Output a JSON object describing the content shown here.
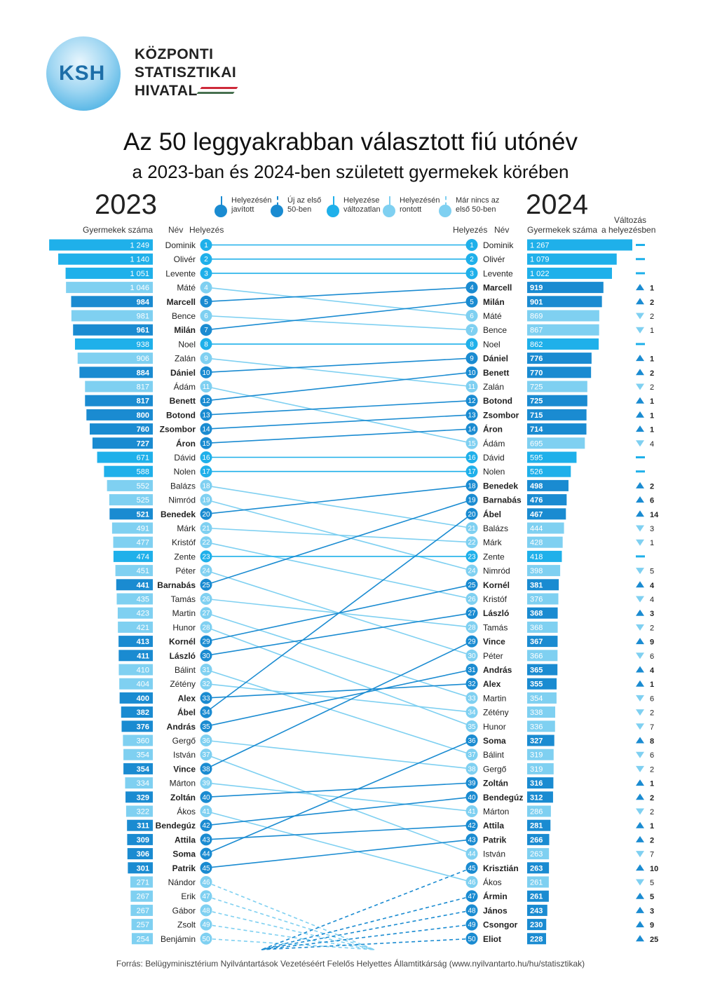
{
  "logo": {
    "abbr": "KSH",
    "line1": "KÖZPONTI",
    "line2": "STATISZTIKAI",
    "line3": "HIVATAL"
  },
  "title": "Az 50 leggyakrabban választott fiú utónév",
  "subtitle": "a 2023-ban és 2024-ben született gyermekek körében",
  "year_left": "2023",
  "year_right": "2024",
  "headers": {
    "count_left": "Gyermekek száma",
    "name": "Név",
    "rank": "Helyezés",
    "count_right": "Gyermekek száma",
    "change_line1": "Változás",
    "change_line2": "a helyezésben"
  },
  "legend": [
    {
      "l1": "Helyezésén",
      "l2": "javított",
      "color": "#1a8bd1",
      "dashed": false
    },
    {
      "l1": "Új az első",
      "l2": "50-ben",
      "color": "#1a8bd1",
      "dashed": true
    },
    {
      "l1": "Helyezése",
      "l2": "változatlan",
      "color": "#1fb0ea",
      "dashed": false
    },
    {
      "l1": "Helyezésén",
      "l2": "rontott",
      "color": "#7fd0f1",
      "dashed": false
    },
    {
      "l1": "Már nincs az",
      "l2": "első 50-ben",
      "color": "#7fd0f1",
      "dashed": true
    }
  ],
  "colors": {
    "improved": "#1a8bd1",
    "same": "#1fb0ea",
    "worse": "#7fd0f1",
    "new_text": "#ffffff"
  },
  "source": "Forrás: Belügyminisztérium Nyilvántartások Vezetéséért Felelős Helyettes Államtitkárság (www.nyilvantarto.hu/hu/statisztikak)",
  "chart_data": {
    "type": "bar",
    "left_2023": [
      {
        "rank": 1,
        "name": "Dominik",
        "count": 1249,
        "label": "1 249",
        "status": "same",
        "new_rank": 1
      },
      {
        "rank": 2,
        "name": "Olivér",
        "count": 1140,
        "label": "1 140",
        "status": "same",
        "new_rank": 2
      },
      {
        "rank": 3,
        "name": "Levente",
        "count": 1051,
        "label": "1 051",
        "status": "same",
        "new_rank": 3
      },
      {
        "rank": 4,
        "name": "Máté",
        "count": 1046,
        "label": "1 046",
        "status": "worse",
        "new_rank": 6
      },
      {
        "rank": 5,
        "name": "Marcell",
        "count": 984,
        "label": "984",
        "status": "improved",
        "new_rank": 4
      },
      {
        "rank": 6,
        "name": "Bence",
        "count": 981,
        "label": "981",
        "status": "worse",
        "new_rank": 7
      },
      {
        "rank": 7,
        "name": "Milán",
        "count": 961,
        "label": "961",
        "status": "improved",
        "new_rank": 5
      },
      {
        "rank": 8,
        "name": "Noel",
        "count": 938,
        "label": "938",
        "status": "same",
        "new_rank": 8
      },
      {
        "rank": 9,
        "name": "Zalán",
        "count": 906,
        "label": "906",
        "status": "worse",
        "new_rank": 11
      },
      {
        "rank": 10,
        "name": "Dániel",
        "count": 884,
        "label": "884",
        "status": "improved",
        "new_rank": 9
      },
      {
        "rank": 11,
        "name": "Ádám",
        "count": 817,
        "label": "817",
        "status": "worse",
        "new_rank": 15
      },
      {
        "rank": 12,
        "name": "Benett",
        "count": 817,
        "label": "817",
        "status": "improved",
        "new_rank": 10
      },
      {
        "rank": 13,
        "name": "Botond",
        "count": 800,
        "label": "800",
        "status": "improved",
        "new_rank": 12
      },
      {
        "rank": 14,
        "name": "Zsombor",
        "count": 760,
        "label": "760",
        "status": "improved",
        "new_rank": 13
      },
      {
        "rank": 15,
        "name": "Áron",
        "count": 727,
        "label": "727",
        "status": "improved",
        "new_rank": 14
      },
      {
        "rank": 16,
        "name": "Dávid",
        "count": 671,
        "label": "671",
        "status": "same",
        "new_rank": 16
      },
      {
        "rank": 17,
        "name": "Nolen",
        "count": 588,
        "label": "588",
        "status": "same",
        "new_rank": 17
      },
      {
        "rank": 18,
        "name": "Balázs",
        "count": 552,
        "label": "552",
        "status": "worse",
        "new_rank": 21
      },
      {
        "rank": 19,
        "name": "Nimród",
        "count": 525,
        "label": "525",
        "status": "worse",
        "new_rank": 24
      },
      {
        "rank": 20,
        "name": "Benedek",
        "count": 521,
        "label": "521",
        "status": "improved",
        "new_rank": 18
      },
      {
        "rank": 21,
        "name": "Márk",
        "count": 491,
        "label": "491",
        "status": "worse",
        "new_rank": 22
      },
      {
        "rank": 22,
        "name": "Kristóf",
        "count": 477,
        "label": "477",
        "status": "worse",
        "new_rank": 26
      },
      {
        "rank": 23,
        "name": "Zente",
        "count": 474,
        "label": "474",
        "status": "same",
        "new_rank": 23
      },
      {
        "rank": 24,
        "name": "Péter",
        "count": 451,
        "label": "451",
        "status": "worse",
        "new_rank": 30
      },
      {
        "rank": 25,
        "name": "Barnabás",
        "count": 441,
        "label": "441",
        "status": "improved",
        "new_rank": 19
      },
      {
        "rank": 26,
        "name": "Tamás",
        "count": 435,
        "label": "435",
        "status": "worse",
        "new_rank": 28
      },
      {
        "rank": 27,
        "name": "Martin",
        "count": 423,
        "label": "423",
        "status": "worse",
        "new_rank": 33
      },
      {
        "rank": 28,
        "name": "Hunor",
        "count": 421,
        "label": "421",
        "status": "worse",
        "new_rank": 35
      },
      {
        "rank": 29,
        "name": "Kornél",
        "count": 413,
        "label": "413",
        "status": "improved",
        "new_rank": 25
      },
      {
        "rank": 30,
        "name": "László",
        "count": 411,
        "label": "411",
        "status": "improved",
        "new_rank": 27
      },
      {
        "rank": 31,
        "name": "Bálint",
        "count": 410,
        "label": "410",
        "status": "worse",
        "new_rank": 37
      },
      {
        "rank": 32,
        "name": "Zétény",
        "count": 404,
        "label": "404",
        "status": "worse",
        "new_rank": 34
      },
      {
        "rank": 33,
        "name": "Alex",
        "count": 400,
        "label": "400",
        "status": "improved",
        "new_rank": 32
      },
      {
        "rank": 34,
        "name": "Ábel",
        "count": 382,
        "label": "382",
        "status": "improved",
        "new_rank": 20
      },
      {
        "rank": 35,
        "name": "András",
        "count": 376,
        "label": "376",
        "status": "improved",
        "new_rank": 31
      },
      {
        "rank": 36,
        "name": "Gergő",
        "count": 360,
        "label": "360",
        "status": "worse",
        "new_rank": 38
      },
      {
        "rank": 37,
        "name": "István",
        "count": 354,
        "label": "354",
        "status": "worse",
        "new_rank": 44
      },
      {
        "rank": 38,
        "name": "Vince",
        "count": 354,
        "label": "354",
        "status": "improved",
        "new_rank": 29
      },
      {
        "rank": 39,
        "name": "Márton",
        "count": 334,
        "label": "334",
        "status": "worse",
        "new_rank": 41
      },
      {
        "rank": 40,
        "name": "Zoltán",
        "count": 329,
        "label": "329",
        "status": "improved",
        "new_rank": 39
      },
      {
        "rank": 41,
        "name": "Ákos",
        "count": 322,
        "label": "322",
        "status": "worse",
        "new_rank": 46
      },
      {
        "rank": 42,
        "name": "Bendegúz",
        "count": 311,
        "label": "311",
        "status": "improved",
        "new_rank": 40
      },
      {
        "rank": 43,
        "name": "Attila",
        "count": 309,
        "label": "309",
        "status": "improved",
        "new_rank": 42
      },
      {
        "rank": 44,
        "name": "Soma",
        "count": 306,
        "label": "306",
        "status": "improved",
        "new_rank": 36
      },
      {
        "rank": 45,
        "name": "Patrik",
        "count": 301,
        "label": "301",
        "status": "improved",
        "new_rank": 43
      },
      {
        "rank": 46,
        "name": "Nándor",
        "count": 271,
        "label": "271",
        "status": "dropped",
        "new_rank": null
      },
      {
        "rank": 47,
        "name": "Erik",
        "count": 267,
        "label": "267",
        "status": "dropped",
        "new_rank": null
      },
      {
        "rank": 48,
        "name": "Gábor",
        "count": 267,
        "label": "267",
        "status": "dropped",
        "new_rank": null
      },
      {
        "rank": 49,
        "name": "Zsolt",
        "count": 257,
        "label": "257",
        "status": "dropped",
        "new_rank": null
      },
      {
        "rank": 50,
        "name": "Benjámin",
        "count": 254,
        "label": "254",
        "status": "dropped",
        "new_rank": null
      }
    ],
    "right_2024": [
      {
        "rank": 1,
        "name": "Dominik",
        "count": 1267,
        "label": "1 267",
        "status": "same",
        "change": "",
        "dir": "same"
      },
      {
        "rank": 2,
        "name": "Olivér",
        "count": 1079,
        "label": "1 079",
        "status": "same",
        "change": "",
        "dir": "same"
      },
      {
        "rank": 3,
        "name": "Levente",
        "count": 1022,
        "label": "1 022",
        "status": "same",
        "change": "",
        "dir": "same"
      },
      {
        "rank": 4,
        "name": "Marcell",
        "count": 919,
        "label": "919",
        "status": "improved",
        "change": "1",
        "dir": "up"
      },
      {
        "rank": 5,
        "name": "Milán",
        "count": 901,
        "label": "901",
        "status": "improved",
        "change": "2",
        "dir": "up"
      },
      {
        "rank": 6,
        "name": "Máté",
        "count": 869,
        "label": "869",
        "status": "worse",
        "change": "2",
        "dir": "down"
      },
      {
        "rank": 7,
        "name": "Bence",
        "count": 867,
        "label": "867",
        "status": "worse",
        "change": "1",
        "dir": "down"
      },
      {
        "rank": 8,
        "name": "Noel",
        "count": 862,
        "label": "862",
        "status": "same",
        "change": "",
        "dir": "same"
      },
      {
        "rank": 9,
        "name": "Dániel",
        "count": 776,
        "label": "776",
        "status": "improved",
        "change": "1",
        "dir": "up"
      },
      {
        "rank": 10,
        "name": "Benett",
        "count": 770,
        "label": "770",
        "status": "improved",
        "change": "2",
        "dir": "up"
      },
      {
        "rank": 11,
        "name": "Zalán",
        "count": 725,
        "label": "725",
        "status": "worse",
        "change": "2",
        "dir": "down"
      },
      {
        "rank": 12,
        "name": "Botond",
        "count": 725,
        "label": "725",
        "status": "improved",
        "change": "1",
        "dir": "up"
      },
      {
        "rank": 13,
        "name": "Zsombor",
        "count": 715,
        "label": "715",
        "status": "improved",
        "change": "1",
        "dir": "up"
      },
      {
        "rank": 14,
        "name": "Áron",
        "count": 714,
        "label": "714",
        "status": "improved",
        "change": "1",
        "dir": "up"
      },
      {
        "rank": 15,
        "name": "Ádám",
        "count": 695,
        "label": "695",
        "status": "worse",
        "change": "4",
        "dir": "down"
      },
      {
        "rank": 16,
        "name": "Dávid",
        "count": 595,
        "label": "595",
        "status": "same",
        "change": "",
        "dir": "same"
      },
      {
        "rank": 17,
        "name": "Nolen",
        "count": 526,
        "label": "526",
        "status": "same",
        "change": "",
        "dir": "same"
      },
      {
        "rank": 18,
        "name": "Benedek",
        "count": 498,
        "label": "498",
        "status": "improved",
        "change": "2",
        "dir": "up"
      },
      {
        "rank": 19,
        "name": "Barnabás",
        "count": 476,
        "label": "476",
        "status": "improved",
        "change": "6",
        "dir": "up"
      },
      {
        "rank": 20,
        "name": "Ábel",
        "count": 467,
        "label": "467",
        "status": "improved",
        "change": "14",
        "dir": "up"
      },
      {
        "rank": 21,
        "name": "Balázs",
        "count": 444,
        "label": "444",
        "status": "worse",
        "change": "3",
        "dir": "down"
      },
      {
        "rank": 22,
        "name": "Márk",
        "count": 428,
        "label": "428",
        "status": "worse",
        "change": "1",
        "dir": "down"
      },
      {
        "rank": 23,
        "name": "Zente",
        "count": 418,
        "label": "418",
        "status": "same",
        "change": "",
        "dir": "same"
      },
      {
        "rank": 24,
        "name": "Nimród",
        "count": 398,
        "label": "398",
        "status": "worse",
        "change": "5",
        "dir": "down"
      },
      {
        "rank": 25,
        "name": "Kornél",
        "count": 381,
        "label": "381",
        "status": "improved",
        "change": "4",
        "dir": "up"
      },
      {
        "rank": 26,
        "name": "Kristóf",
        "count": 376,
        "label": "376",
        "status": "worse",
        "change": "4",
        "dir": "down"
      },
      {
        "rank": 27,
        "name": "László",
        "count": 368,
        "label": "368",
        "status": "improved",
        "change": "3",
        "dir": "up"
      },
      {
        "rank": 28,
        "name": "Tamás",
        "count": 368,
        "label": "368",
        "status": "worse",
        "change": "2",
        "dir": "down"
      },
      {
        "rank": 29,
        "name": "Vince",
        "count": 367,
        "label": "367",
        "status": "improved",
        "change": "9",
        "dir": "up"
      },
      {
        "rank": 30,
        "name": "Péter",
        "count": 366,
        "label": "366",
        "status": "worse",
        "change": "6",
        "dir": "down"
      },
      {
        "rank": 31,
        "name": "András",
        "count": 365,
        "label": "365",
        "status": "improved",
        "change": "4",
        "dir": "up"
      },
      {
        "rank": 32,
        "name": "Alex",
        "count": 355,
        "label": "355",
        "status": "improved",
        "change": "1",
        "dir": "up"
      },
      {
        "rank": 33,
        "name": "Martin",
        "count": 354,
        "label": "354",
        "status": "worse",
        "change": "6",
        "dir": "down"
      },
      {
        "rank": 34,
        "name": "Zétény",
        "count": 338,
        "label": "338",
        "status": "worse",
        "change": "2",
        "dir": "down"
      },
      {
        "rank": 35,
        "name": "Hunor",
        "count": 336,
        "label": "336",
        "status": "worse",
        "change": "7",
        "dir": "down"
      },
      {
        "rank": 36,
        "name": "Soma",
        "count": 327,
        "label": "327",
        "status": "improved",
        "change": "8",
        "dir": "up"
      },
      {
        "rank": 37,
        "name": "Bálint",
        "count": 319,
        "label": "319",
        "status": "worse",
        "change": "6",
        "dir": "down"
      },
      {
        "rank": 38,
        "name": "Gergő",
        "count": 319,
        "label": "319",
        "status": "worse",
        "change": "2",
        "dir": "down"
      },
      {
        "rank": 39,
        "name": "Zoltán",
        "count": 316,
        "label": "316",
        "status": "improved",
        "change": "1",
        "dir": "up"
      },
      {
        "rank": 40,
        "name": "Bendegúz",
        "count": 312,
        "label": "312",
        "status": "improved",
        "change": "2",
        "dir": "up"
      },
      {
        "rank": 41,
        "name": "Márton",
        "count": 286,
        "label": "286",
        "status": "worse",
        "change": "2",
        "dir": "down"
      },
      {
        "rank": 42,
        "name": "Attila",
        "count": 281,
        "label": "281",
        "status": "improved",
        "change": "1",
        "dir": "up"
      },
      {
        "rank": 43,
        "name": "Patrik",
        "count": 266,
        "label": "266",
        "status": "improved",
        "change": "2",
        "dir": "up"
      },
      {
        "rank": 44,
        "name": "István",
        "count": 263,
        "label": "263",
        "status": "worse",
        "change": "7",
        "dir": "down"
      },
      {
        "rank": 45,
        "name": "Krisztián",
        "count": 263,
        "label": "263",
        "status": "improved",
        "change": "10",
        "dir": "up"
      },
      {
        "rank": 46,
        "name": "Ákos",
        "count": 261,
        "label": "261",
        "status": "worse",
        "change": "5",
        "dir": "down"
      },
      {
        "rank": 47,
        "name": "Ármin",
        "count": 261,
        "label": "261",
        "status": "improved",
        "change": "5",
        "dir": "up"
      },
      {
        "rank": 48,
        "name": "János",
        "count": 243,
        "label": "243",
        "status": "improved",
        "change": "3",
        "dir": "up"
      },
      {
        "rank": 49,
        "name": "Csongor",
        "count": 230,
        "label": "230",
        "status": "improved",
        "change": "9",
        "dir": "up"
      },
      {
        "rank": 50,
        "name": "Eliot",
        "count": 228,
        "label": "228",
        "status": "improved",
        "change": "25",
        "dir": "up"
      }
    ]
  }
}
